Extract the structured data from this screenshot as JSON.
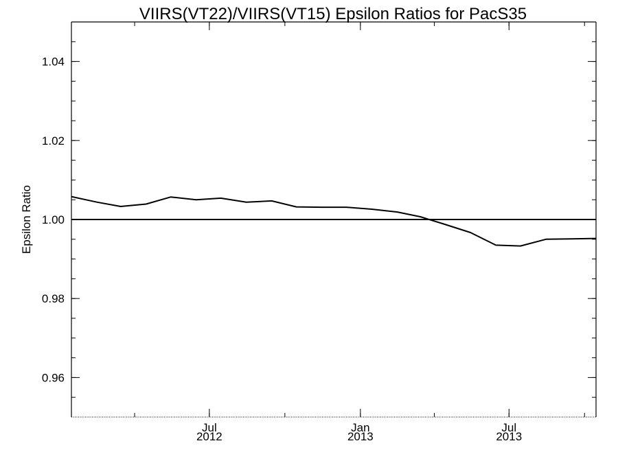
{
  "chart_data": {
    "type": "line",
    "title": "VIIRS(VT22)/VIIRS(VT15)  Epsilon Ratios for PacS35",
    "xlabel": "",
    "ylabel": "Epsilon Ratio",
    "xlim": [
      "2012-01-15",
      "2013-10-15"
    ],
    "ylim": [
      0.95,
      1.05
    ],
    "grid": false,
    "legend": "none",
    "reference_line": {
      "y": 1.0
    },
    "x_ticks": [
      {
        "date": "2012-07-01",
        "label": "Jul",
        "sublabel": "2012"
      },
      {
        "date": "2013-01-01",
        "label": "Jan",
        "sublabel": "2013"
      },
      {
        "date": "2013-07-01",
        "label": "Jul",
        "sublabel": "2013"
      }
    ],
    "y_ticks": [
      {
        "value": 0.96,
        "label": "0.96"
      },
      {
        "value": 0.98,
        "label": "0.98"
      },
      {
        "value": 1.0,
        "label": "1.00"
      },
      {
        "value": 1.02,
        "label": "1.02"
      },
      {
        "value": 1.04,
        "label": "1.04"
      }
    ],
    "series": [
      {
        "color": "#000000",
        "points": [
          {
            "x": "2012-01-15",
            "y": 1.0058
          },
          {
            "x": "2012-02-15",
            "y": 1.0044
          },
          {
            "x": "2012-03-15",
            "y": 1.0033
          },
          {
            "x": "2012-04-15",
            "y": 1.0039
          },
          {
            "x": "2012-05-15",
            "y": 1.0057
          },
          {
            "x": "2012-06-15",
            "y": 1.005
          },
          {
            "x": "2012-07-15",
            "y": 1.0054
          },
          {
            "x": "2012-08-15",
            "y": 1.0044
          },
          {
            "x": "2012-09-15",
            "y": 1.0047
          },
          {
            "x": "2012-10-15",
            "y": 1.0032
          },
          {
            "x": "2012-11-15",
            "y": 1.0031
          },
          {
            "x": "2012-12-15",
            "y": 1.0031
          },
          {
            "x": "2013-01-15",
            "y": 1.0026
          },
          {
            "x": "2013-02-15",
            "y": 1.0019
          },
          {
            "x": "2013-03-15",
            "y": 1.0007
          },
          {
            "x": "2013-04-15",
            "y": 0.9987
          },
          {
            "x": "2013-05-15",
            "y": 0.9967
          },
          {
            "x": "2013-06-15",
            "y": 0.9935
          },
          {
            "x": "2013-07-15",
            "y": 0.9933
          },
          {
            "x": "2013-08-15",
            "y": 0.995
          },
          {
            "x": "2013-09-15",
            "y": 0.9951
          },
          {
            "x": "2013-10-15",
            "y": 0.9952
          }
        ]
      }
    ]
  }
}
